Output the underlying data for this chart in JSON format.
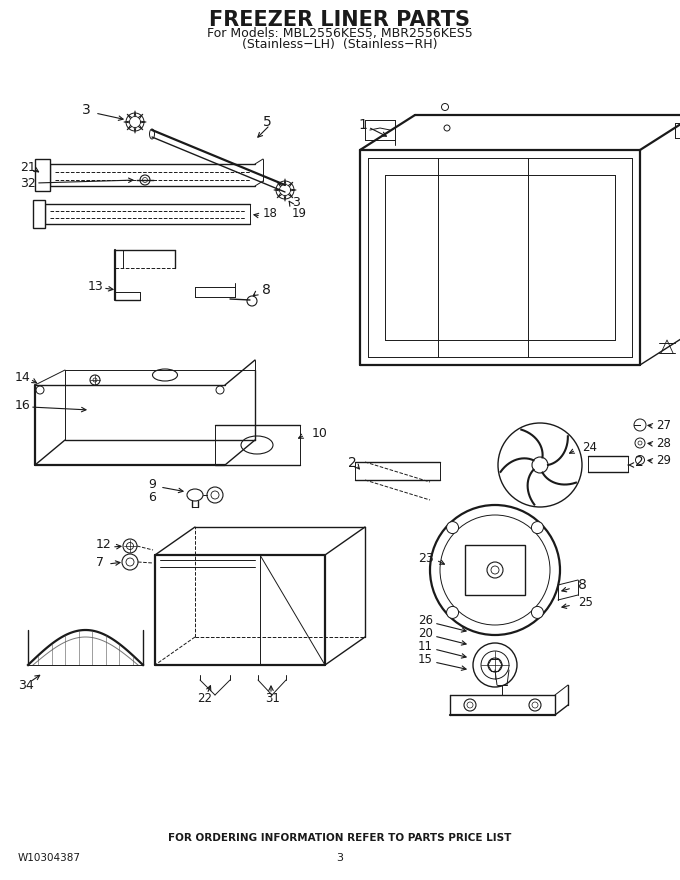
{
  "title": "FREEZER LINER PARTS",
  "subtitle1": "For Models: MBL2556KES5, MBR2556KES5",
  "subtitle2": "(Stainless−LH)  (Stainless−RH)",
  "footer_text": "FOR ORDERING INFORMATION REFER TO PARTS PRICE LIST",
  "part_number": "W10304387",
  "page_number": "3",
  "bg_color": "#ffffff",
  "line_color": "#1a1a1a",
  "title_fontsize": 15,
  "subtitle_fontsize": 9,
  "footer_fontsize": 7.5,
  "label_fontsize": 9
}
